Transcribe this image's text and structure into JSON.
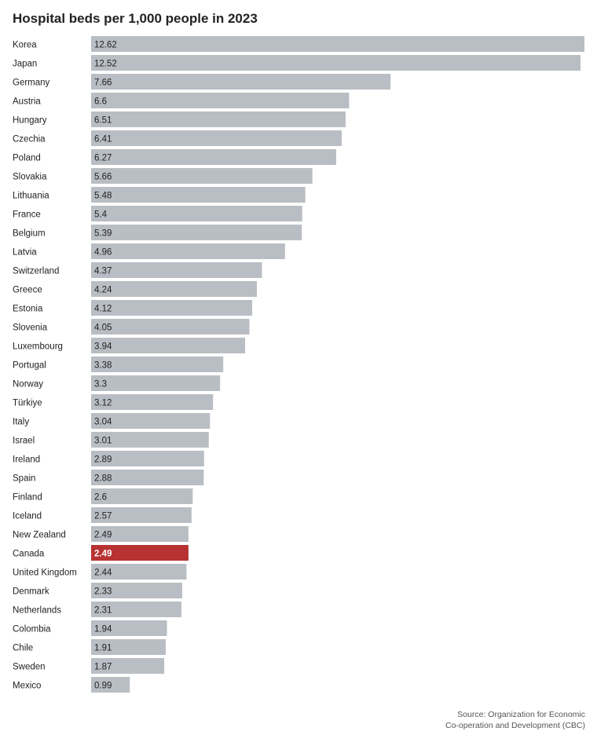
{
  "chart_data": {
    "type": "bar",
    "orientation": "horizontal",
    "title": "Hospital beds per 1,000 people in 2023",
    "xlabel": "",
    "ylabel": "",
    "grid": false,
    "xlim": [
      0,
      12.62
    ],
    "highlight_category": "Canada",
    "categories": [
      "Korea",
      "Japan",
      "Germany",
      "Austria",
      "Hungary",
      "Czechia",
      "Poland",
      "Slovakia",
      "Lithuania",
      "France",
      "Belgium",
      "Latvia",
      "Switzerland",
      "Greece",
      "Estonia",
      "Slovenia",
      "Luxembourg",
      "Portugal",
      "Norway",
      "Türkiye",
      "Italy",
      "Israel",
      "Ireland",
      "Spain",
      "Finland",
      "Iceland",
      "New Zealand",
      "Canada",
      "United Kingdom",
      "Denmark",
      "Netherlands",
      "Colombia",
      "Chile",
      "Sweden",
      "Mexico"
    ],
    "values": [
      12.62,
      12.52,
      7.66,
      6.6,
      6.51,
      6.41,
      6.27,
      5.66,
      5.48,
      5.4,
      5.39,
      4.96,
      4.37,
      4.24,
      4.12,
      4.05,
      3.94,
      3.38,
      3.3,
      3.12,
      3.04,
      3.01,
      2.89,
      2.88,
      2.6,
      2.57,
      2.49,
      2.49,
      2.44,
      2.33,
      2.31,
      1.94,
      1.91,
      1.87,
      0.99
    ],
    "value_labels": [
      "12.62",
      "12.52",
      "7.66",
      "6.6",
      "6.51",
      "6.41",
      "6.27",
      "5.66",
      "5.48",
      "5.4",
      "5.39",
      "4.96",
      "4.37",
      "4.24",
      "4.12",
      "4.05",
      "3.94",
      "3.38",
      "3.3",
      "3.12",
      "3.04",
      "3.01",
      "2.89",
      "2.88",
      "2.6",
      "2.57",
      "2.49",
      "2.49",
      "2.44",
      "2.33",
      "2.31",
      "1.94",
      "1.91",
      "1.87",
      "0.99"
    ],
    "colors": {
      "bar": "#b9bec4",
      "highlight": "#b83232"
    }
  },
  "source": {
    "line1": "Source: Organization for Economic",
    "line2": "Co-operation and Development (CBC)"
  }
}
